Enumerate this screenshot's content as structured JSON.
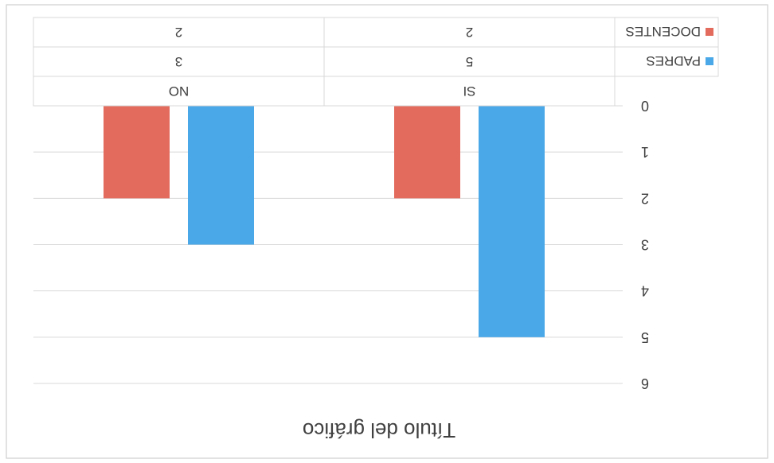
{
  "chart_data": {
    "type": "bar",
    "orientation": "rotated 180 degrees (image appears upside down)",
    "title": "Título del gráfico",
    "categories": [
      "SI",
      "NO"
    ],
    "series": [
      {
        "name": "PADRES",
        "values": [
          5,
          3
        ],
        "color": "#4aa8e8"
      },
      {
        "name": "DOCENTES",
        "values": [
          2,
          2
        ],
        "color": "#e36b5d"
      }
    ],
    "ylim": [
      0,
      6
    ],
    "yticks": [
      0,
      1,
      2,
      3,
      4,
      5,
      6
    ],
    "grid": true,
    "data_table": true,
    "legend": "data table"
  }
}
